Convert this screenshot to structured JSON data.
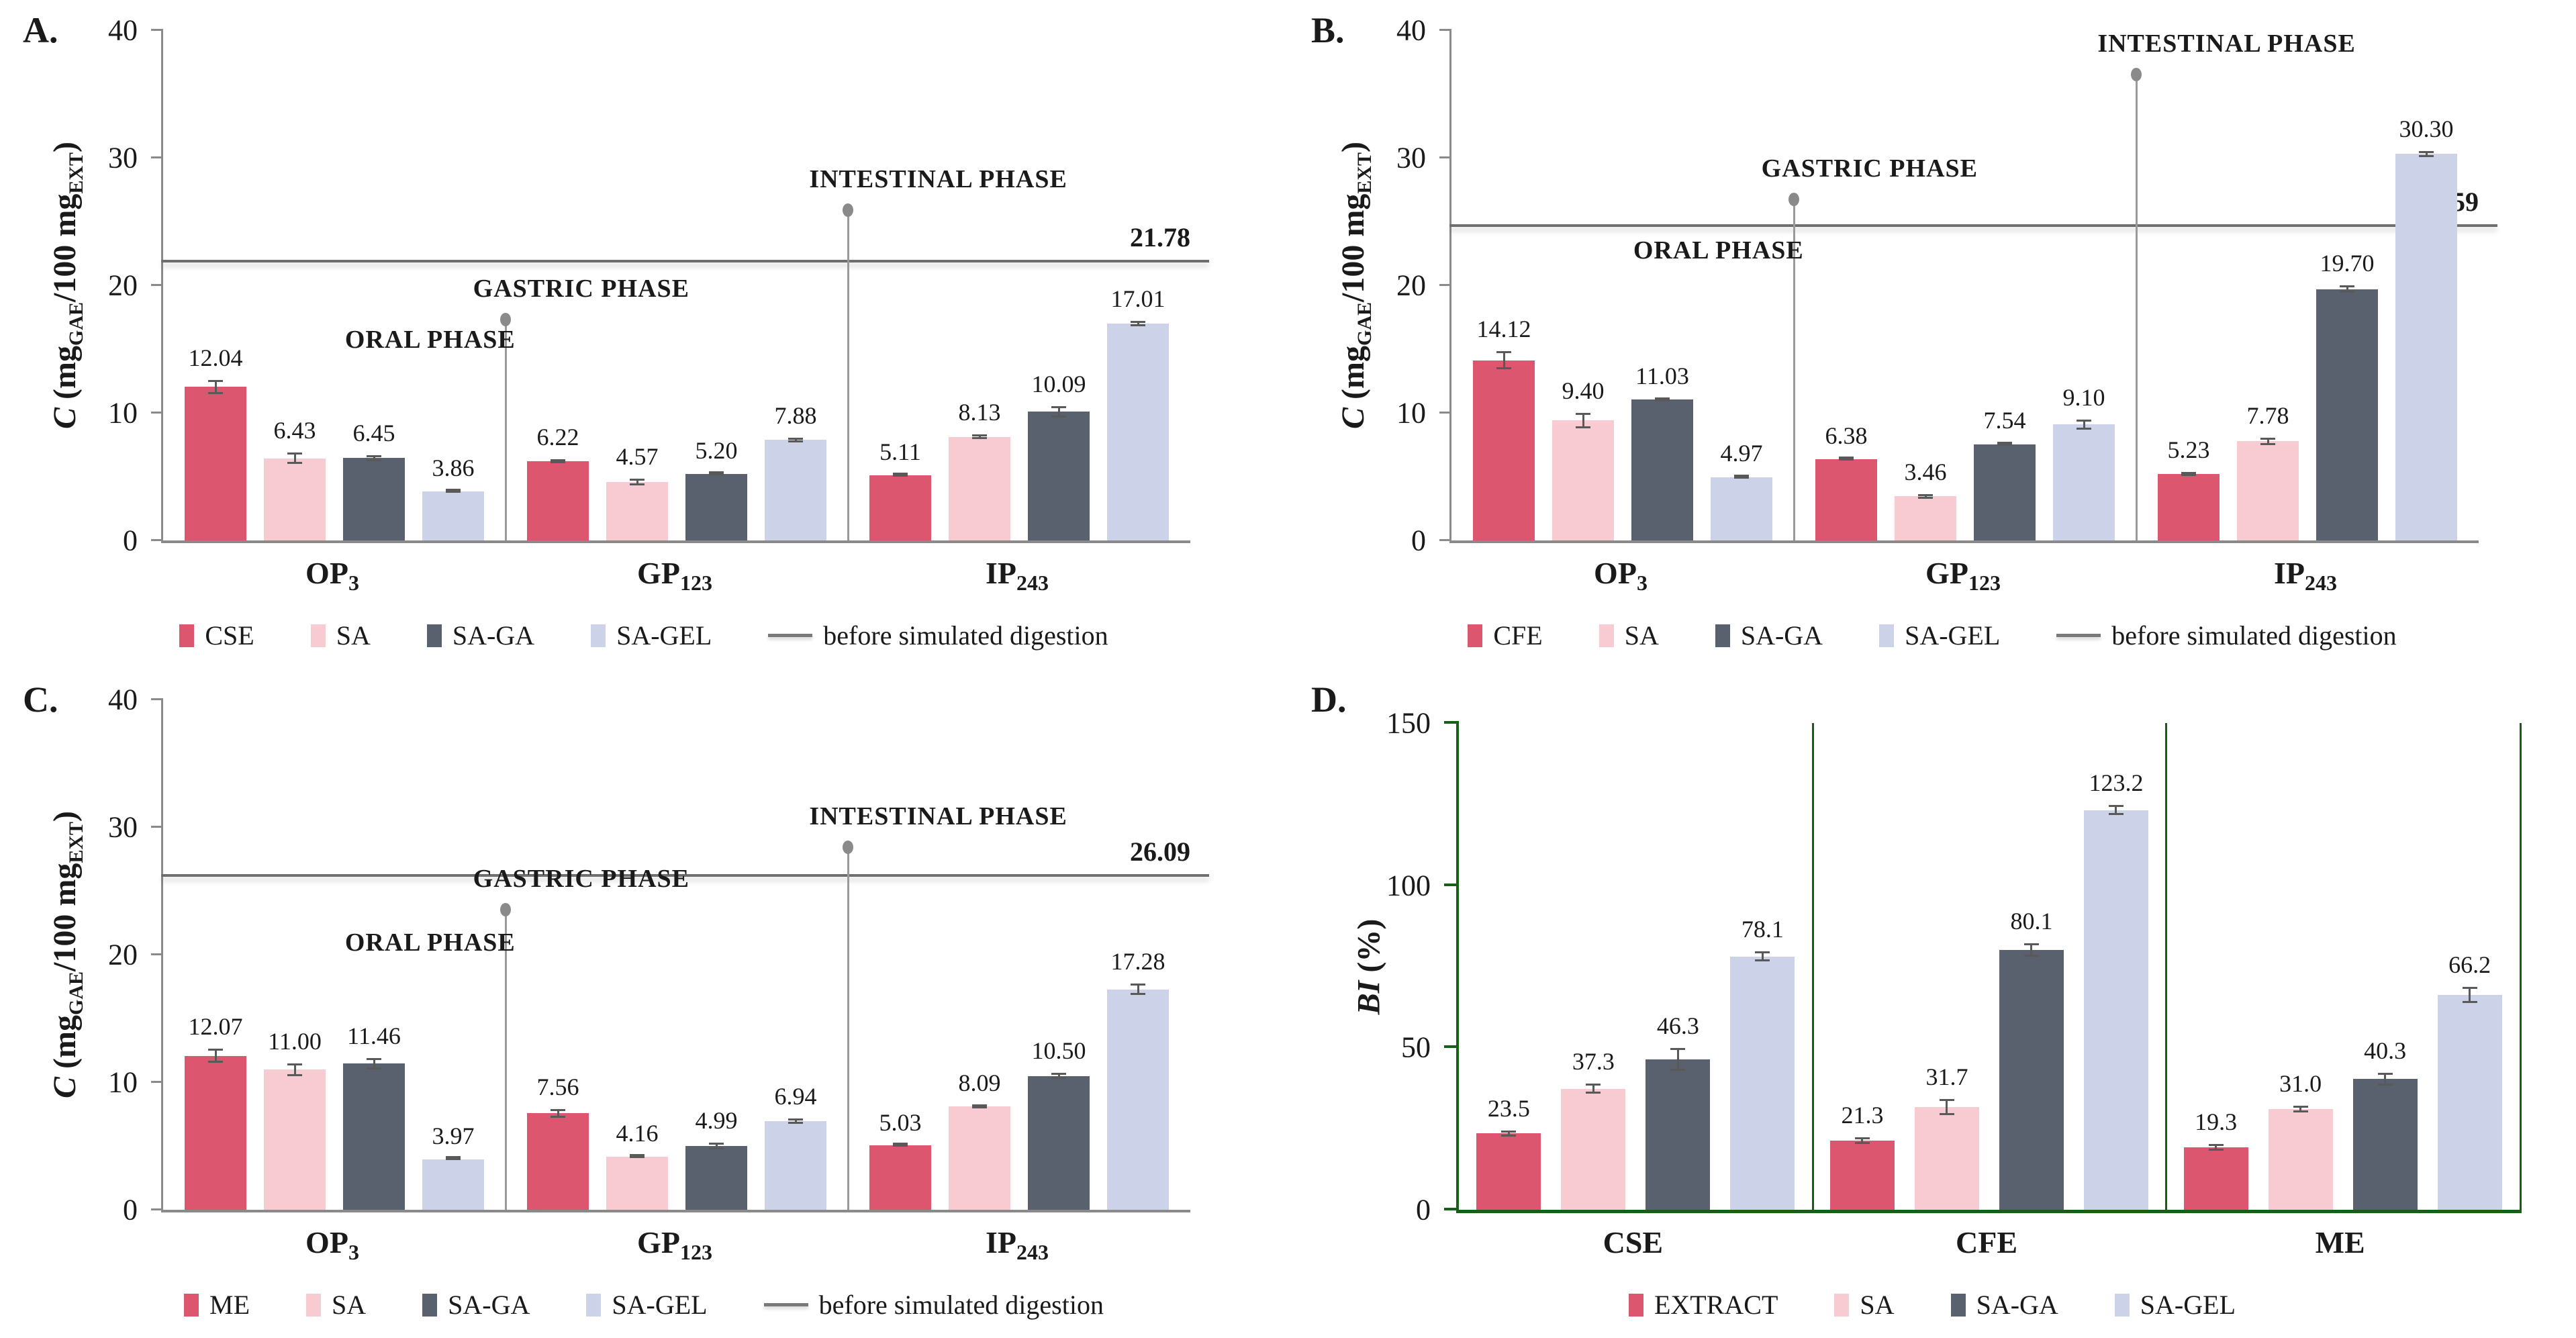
{
  "figure_colors": {
    "red": "#dd5670",
    "pink": "#f8cad2",
    "slate": "#59616f",
    "lavender": "#ccd3e9",
    "ref_line_gray": "#6e6e6e",
    "frame_green": "#156015"
  },
  "chart_data": [
    {
      "id": "A",
      "panel_label": "A.",
      "type": "bar",
      "ylabel_parts": [
        {
          "t": "C",
          "i": 1
        },
        {
          "t": " (mg"
        },
        {
          "t": "GAE",
          "s": 1
        },
        {
          "t": "/100 mg"
        },
        {
          "t": "EXT",
          "s": 1
        },
        {
          "t": ")"
        }
      ],
      "ylim": [
        0,
        40
      ],
      "yticks": [
        0,
        10,
        20,
        30,
        40
      ],
      "label_decimals": 2,
      "grid": false,
      "legend_position": "bottom",
      "categories": [
        {
          "base": "OP",
          "sub": "3"
        },
        {
          "base": "GP",
          "sub": "123"
        },
        {
          "base": "IP",
          "sub": "243"
        }
      ],
      "series": [
        {
          "name": "CSE",
          "color": "#dd5670",
          "values": [
            12.04,
            6.22,
            5.11
          ],
          "errors": [
            0.55,
            0.15,
            0.12
          ]
        },
        {
          "name": "SA",
          "color": "#f8cad2",
          "values": [
            6.43,
            4.57,
            8.13
          ],
          "errors": [
            0.45,
            0.25,
            0.2
          ]
        },
        {
          "name": "SA-GA",
          "color": "#59616f",
          "values": [
            6.45,
            5.2,
            10.09
          ],
          "errors": [
            0.25,
            0.12,
            0.45
          ]
        },
        {
          "name": "SA-GEL",
          "color": "#ccd3e9",
          "values": [
            3.86,
            7.88,
            17.01
          ],
          "errors": [
            0.1,
            0.18,
            0.2
          ]
        }
      ],
      "ref_line": {
        "value": 21.78,
        "label": "21.78",
        "legend_label": "before simulated digestion"
      },
      "annotations": {
        "oral": {
          "text": "ORAL PHASE",
          "x_pct": 26,
          "y": 14.6
        },
        "gastric": {
          "text": "GASTRIC PHASE",
          "boundary": 1,
          "dot_y": 17.0
        },
        "intestinal": {
          "text": "INTESTINAL PHASE",
          "boundary": 2,
          "dot_y": 25.6
        }
      }
    },
    {
      "id": "B",
      "panel_label": "B.",
      "type": "bar",
      "ylabel_parts": [
        {
          "t": "C",
          "i": 1
        },
        {
          "t": " (mg"
        },
        {
          "t": "GAE",
          "s": 1
        },
        {
          "t": "/100 mg"
        },
        {
          "t": "EXT",
          "s": 1
        },
        {
          "t": ")"
        }
      ],
      "ylim": [
        0,
        40
      ],
      "yticks": [
        0,
        10,
        20,
        30,
        40
      ],
      "label_decimals": 2,
      "grid": false,
      "legend_position": "bottom",
      "categories": [
        {
          "base": "OP",
          "sub": "3"
        },
        {
          "base": "GP",
          "sub": "123"
        },
        {
          "base": "IP",
          "sub": "243"
        }
      ],
      "series": [
        {
          "name": "CFE",
          "color": "#dd5670",
          "values": [
            14.12,
            6.38,
            5.23
          ],
          "errors": [
            0.7,
            0.1,
            0.15
          ]
        },
        {
          "name": "SA",
          "color": "#f8cad2",
          "values": [
            9.4,
            3.46,
            7.78
          ],
          "errors": [
            0.6,
            0.18,
            0.28
          ]
        },
        {
          "name": "SA-GA",
          "color": "#59616f",
          "values": [
            11.03,
            7.54,
            19.7
          ],
          "errors": [
            0.15,
            0.12,
            0.3
          ]
        },
        {
          "name": "SA-GEL",
          "color": "#ccd3e9",
          "values": [
            4.97,
            9.1,
            30.3
          ],
          "errors": [
            0.15,
            0.4,
            0.22
          ]
        }
      ],
      "ref_line": {
        "value": 24.59,
        "label": "24.59",
        "legend_label": "before simulated digestion"
      },
      "annotations": {
        "oral": {
          "text": "ORAL PHASE",
          "x_pct": 26,
          "y": 21.6
        },
        "gastric": {
          "text": "GASTRIC PHASE",
          "boundary": 1,
          "dot_y": 26.4
        },
        "intestinal": {
          "text": "INTESTINAL PHASE",
          "boundary": 2,
          "dot_y": 36.2
        }
      }
    },
    {
      "id": "C",
      "panel_label": "C.",
      "type": "bar",
      "ylabel_parts": [
        {
          "t": "C",
          "i": 1
        },
        {
          "t": " (mg"
        },
        {
          "t": "GAE",
          "s": 1
        },
        {
          "t": "/100 mg"
        },
        {
          "t": "EXT",
          "s": 1
        },
        {
          "t": ")"
        }
      ],
      "ylim": [
        0,
        40
      ],
      "yticks": [
        0,
        10,
        20,
        30,
        40
      ],
      "label_decimals": 2,
      "grid": false,
      "legend_position": "bottom",
      "categories": [
        {
          "base": "OP",
          "sub": "3"
        },
        {
          "base": "GP",
          "sub": "123"
        },
        {
          "base": "IP",
          "sub": "243"
        }
      ],
      "series": [
        {
          "name": "ME",
          "color": "#dd5670",
          "values": [
            12.07,
            7.56,
            5.03
          ],
          "errors": [
            0.55,
            0.35,
            0.1
          ]
        },
        {
          "name": "SA",
          "color": "#f8cad2",
          "values": [
            11.0,
            4.16,
            8.09
          ],
          "errors": [
            0.5,
            0.08,
            0.12
          ]
        },
        {
          "name": "SA-GA",
          "color": "#59616f",
          "values": [
            11.46,
            4.99,
            10.5
          ],
          "errors": [
            0.45,
            0.25,
            0.25
          ]
        },
        {
          "name": "SA-GEL",
          "color": "#ccd3e9",
          "values": [
            3.97,
            6.94,
            17.28
          ],
          "errors": [
            0.1,
            0.2,
            0.45
          ]
        }
      ],
      "ref_line": {
        "value": 26.09,
        "label": "26.09",
        "legend_label": "before simulated digestion"
      },
      "annotations": {
        "oral": {
          "text": "ORAL PHASE",
          "x_pct": 26,
          "y": 19.8
        },
        "gastric": {
          "text": "GASTRIC PHASE",
          "boundary": 1,
          "dot_y": 23.2
        },
        "intestinal": {
          "text": "INTESTINAL PHASE",
          "boundary": 2,
          "dot_y": 28.1
        }
      }
    },
    {
      "id": "D",
      "panel_label": "D.",
      "type": "bar",
      "frame_color": "#156015",
      "ylabel_parts": [
        {
          "t": "BI",
          "i": 1
        },
        {
          "t": " (%)"
        }
      ],
      "ylim": [
        0,
        150
      ],
      "yticks": [
        0,
        50,
        100,
        150
      ],
      "label_decimals": 1,
      "grid": false,
      "legend_position": "bottom",
      "group_separators": true,
      "categories": [
        {
          "base": "CSE",
          "sub": ""
        },
        {
          "base": "CFE",
          "sub": ""
        },
        {
          "base": "ME",
          "sub": ""
        }
      ],
      "series": [
        {
          "name": "EXTRACT",
          "color": "#dd5670",
          "values": [
            23.5,
            21.3,
            19.3
          ],
          "errors": [
            1.0,
            1.0,
            1.0
          ]
        },
        {
          "name": "SA",
          "color": "#f8cad2",
          "values": [
            37.3,
            31.7,
            31.0
          ],
          "errors": [
            1.5,
            2.5,
            1.0
          ]
        },
        {
          "name": "SA-GA",
          "color": "#59616f",
          "values": [
            46.3,
            80.1,
            40.3
          ],
          "errors": [
            3.5,
            2.0,
            2.0
          ]
        },
        {
          "name": "SA-GEL",
          "color": "#ccd3e9",
          "values": [
            78.1,
            123.2,
            66.2
          ],
          "errors": [
            1.5,
            1.5,
            2.5
          ]
        }
      ],
      "ref_line": null,
      "annotations": null
    }
  ]
}
